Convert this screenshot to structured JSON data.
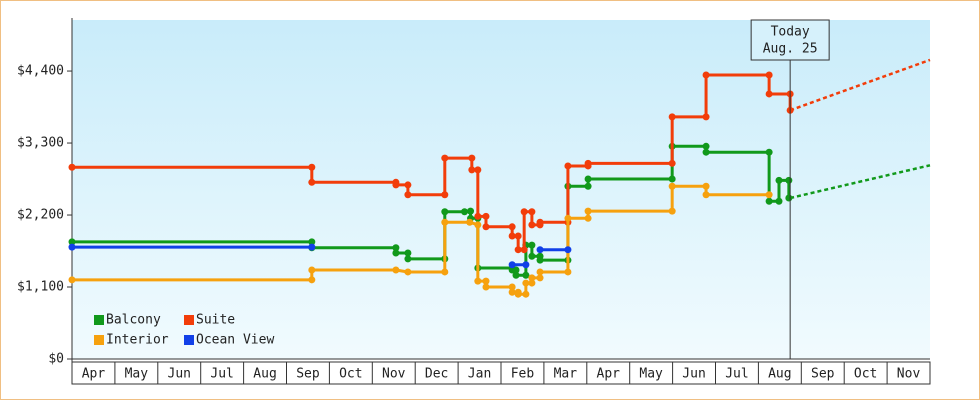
{
  "chart_data": {
    "type": "step-line",
    "xlim": [
      0,
      20
    ],
    "ylim": [
      0,
      5180
    ],
    "yticks": [
      {
        "value": 0,
        "label": "$0"
      },
      {
        "value": 1100,
        "label": "$1,100"
      },
      {
        "value": 2200,
        "label": "$2,200"
      },
      {
        "value": 3300,
        "label": "$3,300"
      },
      {
        "value": 4400,
        "label": "$4,400"
      }
    ],
    "xticks": [
      {
        "value": 0.5,
        "label": "Apr"
      },
      {
        "value": 1.5,
        "label": "May"
      },
      {
        "value": 2.5,
        "label": "Jun"
      },
      {
        "value": 3.5,
        "label": "Jul"
      },
      {
        "value": 4.5,
        "label": "Aug"
      },
      {
        "value": 5.5,
        "label": "Sep"
      },
      {
        "value": 6.5,
        "label": "Oct"
      },
      {
        "value": 7.5,
        "label": "Nov"
      },
      {
        "value": 8.5,
        "label": "Dec"
      },
      {
        "value": 9.5,
        "label": "Jan"
      },
      {
        "value": 10.5,
        "label": "Feb"
      },
      {
        "value": 11.5,
        "label": "Mar"
      },
      {
        "value": 12.5,
        "label": "Apr"
      },
      {
        "value": 13.5,
        "label": "May"
      },
      {
        "value": 14.5,
        "label": "Jun"
      },
      {
        "value": 15.5,
        "label": "Jul"
      },
      {
        "value": 16.5,
        "label": "Aug"
      },
      {
        "value": 17.5,
        "label": "Sep"
      },
      {
        "value": 18.5,
        "label": "Oct"
      },
      {
        "value": 19.5,
        "label": "Nov"
      }
    ],
    "grid": false,
    "legend": "lower left",
    "annotation": {
      "x": 16.74,
      "lines": [
        "Today",
        "Aug. 25"
      ]
    },
    "series": [
      {
        "name": "Balcony",
        "color": "#11991b",
        "x": [
          0,
          5.59,
          5.59,
          7.55,
          7.55,
          7.83,
          7.83,
          8.69,
          8.69,
          9.15,
          9.29,
          9.29,
          9.46,
          9.46,
          10.26,
          10.26,
          10.35,
          10.35,
          10.58,
          10.58,
          10.72,
          10.72,
          10.91,
          10.91,
          11.56,
          11.56,
          12.03,
          12.03,
          13.99,
          13.99,
          14.78,
          14.78,
          16.25,
          16.25,
          16.48,
          16.48,
          16.71,
          16.71
        ],
        "values": [
          1790,
          1790,
          1700,
          1700,
          1620,
          1620,
          1530,
          1530,
          2250,
          2250,
          2260,
          2150,
          2150,
          1390,
          1390,
          1360,
          1360,
          1280,
          1280,
          1740,
          1740,
          1570,
          1570,
          1510,
          1510,
          2640,
          2640,
          2750,
          2750,
          3250,
          3250,
          3160,
          3160,
          2410,
          2410,
          2730,
          2730,
          2460
        ],
        "projection": {
          "x": [
            16.74,
            20
          ],
          "values": [
            2460,
            2960
          ]
        }
      },
      {
        "name": "Suite",
        "color": "#f23d0a",
        "x": [
          0,
          5.59,
          5.59,
          7.55,
          7.55,
          7.83,
          7.83,
          8.69,
          8.69,
          9.32,
          9.32,
          9.46,
          9.46,
          9.65,
          9.65,
          10.26,
          10.26,
          10.4,
          10.4,
          10.54,
          10.54,
          10.72,
          10.72,
          10.91,
          10.91,
          11.56,
          11.56,
          12.03,
          12.03,
          13.99,
          13.99,
          14.78,
          14.78,
          16.25,
          16.25,
          16.74,
          16.74
        ],
        "values": [
          2930,
          2930,
          2700,
          2700,
          2660,
          2660,
          2510,
          2510,
          3070,
          3070,
          2890,
          2890,
          2180,
          2180,
          2020,
          2020,
          1880,
          1880,
          1670,
          1670,
          2250,
          2250,
          2050,
          2050,
          2090,
          2090,
          2950,
          2950,
          2990,
          2990,
          3700,
          3700,
          4340,
          4340,
          4050,
          4050,
          3800
        ],
        "projection": {
          "x": [
            16.74,
            20
          ],
          "values": [
            3800,
            4570
          ]
        }
      },
      {
        "name": "Interior",
        "color": "#f6a10e",
        "x": [
          0,
          5.59,
          5.59,
          7.55,
          7.83,
          8.69,
          8.69,
          9.27,
          9.46,
          9.46,
          9.65,
          9.65,
          10.26,
          10.26,
          10.4,
          10.4,
          10.58,
          10.58,
          10.72,
          10.72,
          10.91,
          10.91,
          11.56,
          11.56,
          12.03,
          12.03,
          13.99,
          13.99,
          14.78,
          14.78,
          16.25
        ],
        "values": [
          1210,
          1210,
          1360,
          1360,
          1330,
          1330,
          2090,
          2090,
          2050,
          1190,
          1190,
          1100,
          1100,
          1020,
          1020,
          990,
          990,
          1160,
          1160,
          1240,
          1240,
          1330,
          1330,
          2150,
          2150,
          2260,
          2260,
          2640,
          2640,
          2510,
          2510
        ]
      },
      {
        "name": "Ocean View",
        "color": "#1140e8",
        "x": [
          0,
          5.59,
          10.26,
          10.26,
          10.58,
          10.91,
          10.91,
          11.56
        ],
        "values": [
          1710,
          1710,
          null,
          1440,
          1440,
          null,
          1670,
          1670
        ]
      }
    ]
  }
}
